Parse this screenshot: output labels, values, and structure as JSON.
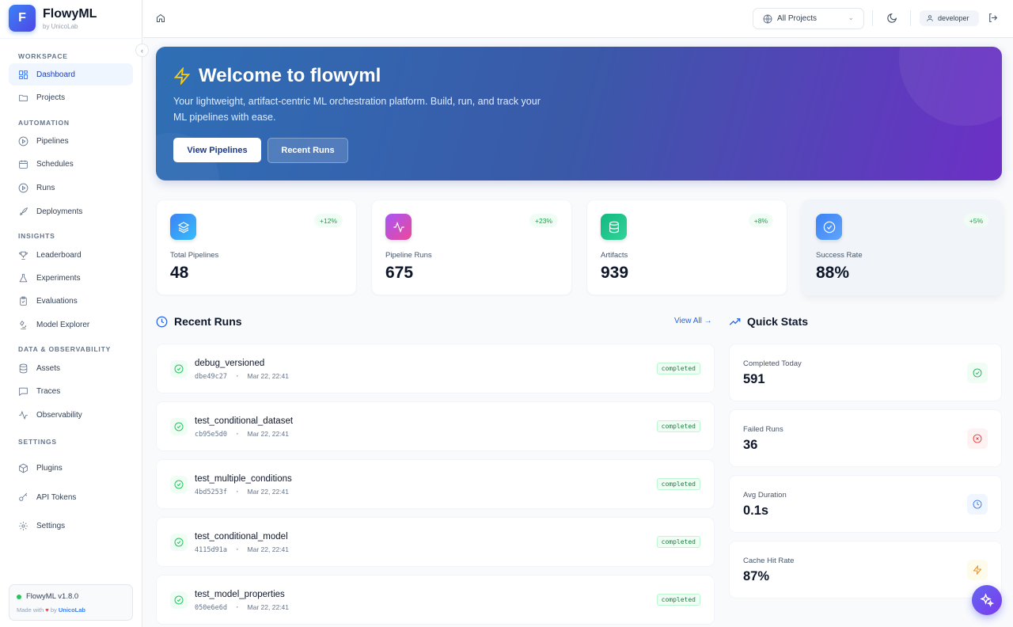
{
  "brand": {
    "name": "FlowyML",
    "letter": "F",
    "by": "by UnicoLab"
  },
  "sidebar": {
    "sections": [
      {
        "label": "WORKSPACE",
        "items": [
          {
            "label": "Dashboard",
            "icon": "dashboard-icon",
            "active": true
          },
          {
            "label": "Projects",
            "icon": "folder-icon"
          }
        ]
      },
      {
        "label": "AUTOMATION",
        "items": [
          {
            "label": "Pipelines",
            "icon": "play-circle-icon"
          },
          {
            "label": "Schedules",
            "icon": "calendar-icon"
          },
          {
            "label": "Runs",
            "icon": "play-circle-icon"
          },
          {
            "label": "Deployments",
            "icon": "rocket-icon"
          }
        ]
      },
      {
        "label": "INSIGHTS",
        "items": [
          {
            "label": "Leaderboard",
            "icon": "trophy-icon"
          },
          {
            "label": "Experiments",
            "icon": "flask-icon"
          },
          {
            "label": "Evaluations",
            "icon": "clipboard-check-icon"
          },
          {
            "label": "Model Explorer",
            "icon": "microscope-icon"
          }
        ]
      },
      {
        "label": "DATA & OBSERVABILITY",
        "items": [
          {
            "label": "Assets",
            "icon": "database-icon"
          },
          {
            "label": "Traces",
            "icon": "message-square-icon"
          },
          {
            "label": "Observability",
            "icon": "activity-icon"
          }
        ]
      },
      {
        "label": "SETTINGS",
        "items": [
          {
            "label": "Plugins",
            "icon": "package-icon"
          },
          {
            "label": "API Tokens",
            "icon": "key-icon"
          },
          {
            "label": "Settings",
            "icon": "gear-icon"
          }
        ]
      }
    ],
    "version": "FlowyML v1.8.0",
    "made_with": "Made with",
    "made_by": "by",
    "made_org": "UnicoLab"
  },
  "header": {
    "project_select": "All Projects",
    "user": "developer"
  },
  "hero": {
    "title": "Welcome to flowyml",
    "subtitle": "Your lightweight, artifact-centric ML orchestration platform. Build, run, and track your ML pipelines with ease.",
    "primary_button": "View Pipelines",
    "secondary_button": "Recent Runs"
  },
  "stats": [
    {
      "label": "Total Pipelines",
      "value": "48",
      "trend": "+12%",
      "icon": "layers-icon",
      "color": "#3b82f6"
    },
    {
      "label": "Pipeline Runs",
      "value": "675",
      "trend": "+23%",
      "icon": "activity-icon",
      "color": "#a855f7"
    },
    {
      "label": "Artifacts",
      "value": "939",
      "trend": "+8%",
      "icon": "database-icon",
      "color": "#10b981"
    },
    {
      "label": "Success Rate",
      "value": "88%",
      "trend": "+5%",
      "icon": "check-circle-icon",
      "color": "#3b82f6"
    }
  ],
  "recent_runs": {
    "title": "Recent Runs",
    "view_all": "View All →",
    "runs": [
      {
        "name": "debug_versioned",
        "id": "dbe49c27",
        "time": "Mar 22, 22:41",
        "status": "completed"
      },
      {
        "name": "test_conditional_dataset",
        "id": "cb95e5d0",
        "time": "Mar 22, 22:41",
        "status": "completed"
      },
      {
        "name": "test_multiple_conditions",
        "id": "4bd5253f",
        "time": "Mar 22, 22:41",
        "status": "completed"
      },
      {
        "name": "test_conditional_model",
        "id": "4115d91a",
        "time": "Mar 22, 22:41",
        "status": "completed"
      },
      {
        "name": "test_model_properties",
        "id": "050e6e6d",
        "time": "Mar 22, 22:41",
        "status": "completed"
      }
    ]
  },
  "quick_stats": {
    "title": "Quick Stats",
    "items": [
      {
        "label": "Completed Today",
        "value": "591",
        "icon": "check-circle-icon",
        "color": "#16a34a",
        "bg": "#f0fdf4"
      },
      {
        "label": "Failed Runs",
        "value": "36",
        "icon": "x-circle-icon",
        "color": "#dc2626",
        "bg": "#fef2f2"
      },
      {
        "label": "Avg Duration",
        "value": "0.1s",
        "icon": "clock-icon",
        "color": "#2563eb",
        "bg": "#eff6ff"
      },
      {
        "label": "Cache Hit Rate",
        "value": "87%",
        "icon": "zap-icon",
        "color": "#d97706",
        "bg": "#fffbeb"
      }
    ]
  }
}
